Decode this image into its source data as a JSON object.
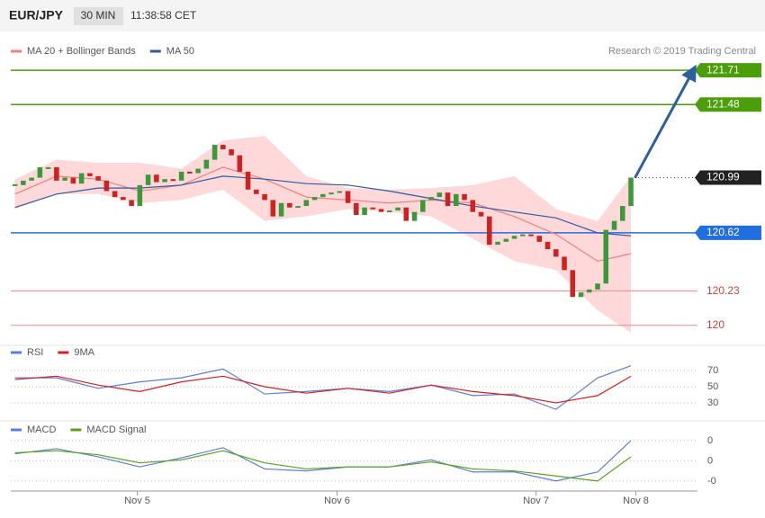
{
  "header": {
    "symbol": "EUR/JPY",
    "interval": "30 MIN",
    "time": "11:38:58 CET",
    "credit": "Research © 2019 Trading Central"
  },
  "chart_data": [
    {
      "type": "candlestick",
      "values": [
        120.94,
        120.97,
        120.99,
        121.06,
        121.06,
        120.97,
        120.99,
        120.95,
        121.02,
        121.0,
        120.97,
        120.9,
        120.86,
        120.84,
        120.8,
        120.94,
        121.01,
        120.96,
        120.98,
        120.97,
        121.03,
        121.02,
        121.05,
        121.11,
        121.21,
        121.18,
        121.14,
        121.03,
        120.91,
        120.88,
        120.84,
        120.73,
        120.82,
        120.79,
        120.8,
        120.84,
        120.86,
        120.88,
        120.89,
        120.9,
        120.82,
        120.74,
        120.79,
        120.78,
        120.76,
        120.77,
        120.79,
        120.7,
        120.76,
        120.84,
        120.86,
        120.89,
        120.8,
        120.88,
        120.84,
        120.76,
        120.73,
        120.54,
        120.56,
        120.58,
        120.6,
        120.61,
        120.6,
        120.56,
        120.51,
        120.46,
        120.37,
        120.19,
        120.22,
        120.24,
        120.28,
        120.64,
        120.7,
        120.8,
        120.99
      ],
      "up_color": "#3a9a3a",
      "down_color": "#cc2222",
      "series": [
        {
          "name": "MA 20 + Bollinger Bands",
          "color": "#f08080",
          "band_color": "#ffd9d9",
          "x": [
            0,
            5,
            10,
            15,
            20,
            25,
            30,
            35,
            40,
            45,
            50,
            55,
            60,
            65,
            70,
            74
          ],
          "values": [
            120.88,
            121.0,
            120.98,
            120.9,
            120.94,
            121.06,
            120.98,
            120.86,
            120.84,
            120.82,
            120.84,
            120.82,
            120.73,
            120.61,
            120.43,
            120.48
          ],
          "upper": [
            120.98,
            121.11,
            121.09,
            121.09,
            121.05,
            121.24,
            121.27,
            121.0,
            120.92,
            120.91,
            120.92,
            120.94,
            121.0,
            120.78,
            120.7,
            121.0
          ],
          "lower": [
            120.78,
            120.88,
            120.88,
            120.82,
            120.84,
            120.91,
            120.7,
            120.73,
            120.78,
            120.76,
            120.73,
            120.58,
            120.43,
            120.37,
            120.1,
            119.95
          ]
        },
        {
          "name": "MA 50",
          "color": "#2c5aa0",
          "x": [
            0,
            5,
            10,
            15,
            20,
            25,
            30,
            35,
            40,
            45,
            50,
            55,
            60,
            65,
            70,
            74
          ],
          "values": [
            120.79,
            120.88,
            120.92,
            120.92,
            120.94,
            121.0,
            120.98,
            120.95,
            120.94,
            120.9,
            120.85,
            120.8,
            120.76,
            120.72,
            120.62,
            120.6
          ]
        }
      ],
      "levels": [
        {
          "value": 121.71,
          "color": "#4a9e0a",
          "tag": true
        },
        {
          "value": 121.48,
          "color": "#4a9e0a",
          "tag": true
        },
        {
          "value": 120.99,
          "color": "#222222",
          "tag": true,
          "dotted": true
        },
        {
          "value": 120.62,
          "color": "#1f6fe0",
          "tag": true
        },
        {
          "value": 120.23,
          "color": "#f08a8a",
          "tag": false
        },
        {
          "value": 120.0,
          "color": "#f08a8a",
          "tag": false
        }
      ],
      "arrow": {
        "x": [
          74.5,
          81.4
        ],
        "values": [
          120.99,
          121.7
        ],
        "color": "#2c5f9e"
      },
      "xlim": [
        -0.5,
        82
      ],
      "ylim": [
        119.92,
        121.94
      ],
      "xticks": [
        {
          "value": 14.7,
          "label": "Nov 5"
        },
        {
          "value": 38.7,
          "label": "Nov 6"
        },
        {
          "value": 62.6,
          "label": "Nov 7"
        },
        {
          "value": 74.6,
          "label": "Nov 8"
        }
      ]
    },
    {
      "type": "line",
      "ylim": [
        11,
        89
      ],
      "yticks": [
        70,
        50,
        30
      ],
      "series": [
        {
          "name": "RSI",
          "color": "#5b7fd6",
          "x": [
            0,
            5,
            10,
            15,
            20,
            25,
            30,
            35,
            40,
            45,
            50,
            55,
            60,
            65,
            70,
            74
          ],
          "values": [
            61,
            61,
            48,
            56,
            61,
            72,
            41,
            44,
            48,
            44,
            52,
            39,
            41,
            22,
            61,
            76
          ]
        },
        {
          "name": "9MA",
          "color": "#d42020",
          "x": [
            0,
            5,
            10,
            15,
            20,
            25,
            30,
            35,
            40,
            45,
            50,
            55,
            60,
            65,
            70,
            74
          ],
          "values": [
            59,
            63,
            52,
            44,
            56,
            63,
            50,
            42,
            48,
            42,
            52,
            44,
            39,
            30,
            39,
            63
          ]
        }
      ]
    },
    {
      "type": "line",
      "ylim": [
        -0.29,
        0.36
      ],
      "yticks": [
        {
          "value": 0.2,
          "label": "0"
        },
        {
          "value": 0,
          "label": "0"
        },
        {
          "value": -0.2,
          "label": "-0"
        }
      ],
      "series": [
        {
          "name": "MACD",
          "color": "#5b7fd6",
          "x": [
            0,
            5,
            10,
            15,
            20,
            25,
            30,
            35,
            40,
            45,
            50,
            55,
            60,
            65,
            70,
            74
          ],
          "values": [
            0.07,
            0.12,
            0.04,
            -0.06,
            0.03,
            0.13,
            -0.08,
            -0.1,
            -0.06,
            -0.06,
            0.01,
            -0.11,
            -0.11,
            -0.2,
            -0.11,
            0.2
          ]
        },
        {
          "name": "MACD Signal",
          "color": "#5aa01e",
          "x": [
            0,
            5,
            10,
            15,
            20,
            25,
            30,
            35,
            40,
            45,
            50,
            55,
            60,
            65,
            70,
            74
          ],
          "values": [
            0.08,
            0.1,
            0.06,
            -0.02,
            0.01,
            0.1,
            -0.02,
            -0.08,
            -0.06,
            -0.06,
            -0.01,
            -0.08,
            -0.1,
            -0.15,
            -0.2,
            0.04
          ]
        }
      ]
    }
  ]
}
